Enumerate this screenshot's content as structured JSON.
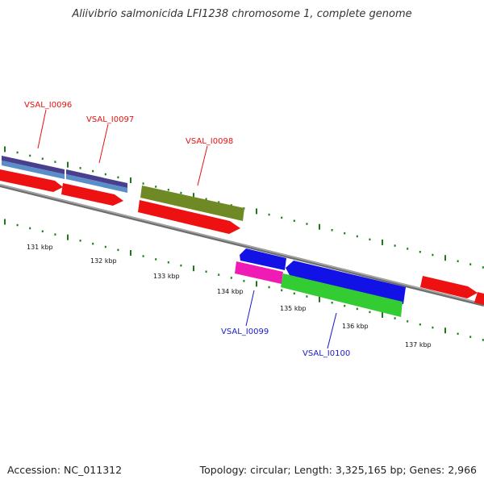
{
  "header": {
    "title": "Aliivibrio salmonicida LFI1238 chromosome 1, complete genome"
  },
  "footer": {
    "accession": "Accession: NC_011312",
    "summary": "Topology: circular; Length: 3,325,165 bp; Genes: 2,966"
  },
  "colors": {
    "forward_label": "#e8110f",
    "reverse_label": "#1a1acb",
    "backbone": "#8a8a8a",
    "tick": "#1a7a1a",
    "cds": "#ee1111",
    "gene_a_top": "#4a3f8f",
    "gene_a_bottom": "#5a8ec8",
    "gene_olive": "#6f8a24",
    "gene_blue": "#1212e6",
    "gene_magenta": "#f01bb4",
    "gene_green": "#33cc33"
  },
  "scale_labels": [
    "131 kbp",
    "132 kbp",
    "133 kbp",
    "134 kbp",
    "135 kbp",
    "136 kbp",
    "137 kbp"
  ],
  "gene_labels": {
    "vsal_i0096": "VSAL_I0096",
    "vsal_i0097": "VSAL_I0097",
    "vsal_i0098": "VSAL_I0098",
    "vsal_i0099": "VSAL_I0099",
    "vsal_i0100": "VSAL_I0100"
  }
}
